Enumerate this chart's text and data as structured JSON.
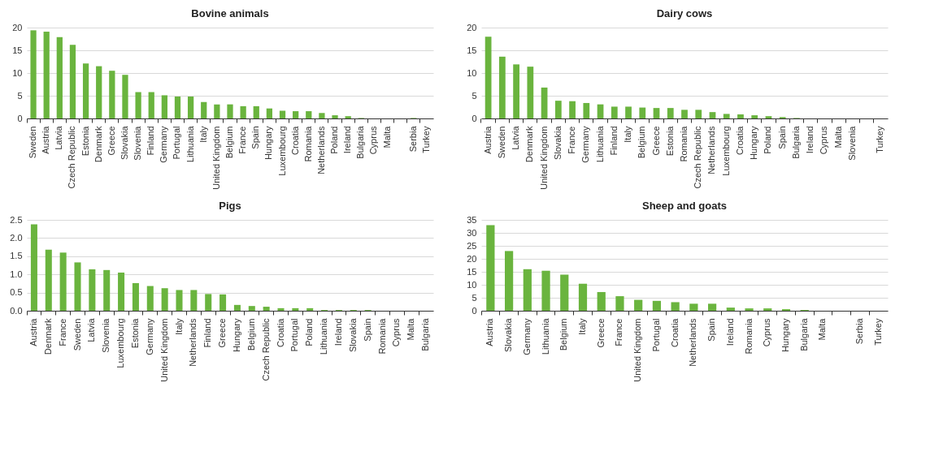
{
  "chart_data": [
    {
      "type": "bar",
      "title": "Bovine animals",
      "color": "#6ab43e",
      "grid": "y",
      "ylim": [
        0,
        20
      ],
      "yticks": [
        0,
        5,
        10,
        15,
        20
      ],
      "categories": [
        "Sweden",
        "Austria",
        "Latvia",
        "Czech Republic",
        "Estonia",
        "Denmark",
        "Greece",
        "Slovakia",
        "Slovenia",
        "Finland",
        "Germany",
        "Portugal",
        "Lithuania",
        "Italy",
        "United Kingdom",
        "Belgium",
        "France",
        "Spain",
        "Hungary",
        "Luxembourg",
        "Croatia",
        "Romania",
        "Netherlands",
        "Poland",
        "Ireland",
        "Bulgaria",
        "Cyprus",
        "Malta",
        null,
        "Serbia",
        "Turkey"
      ],
      "values": [
        19.4,
        19.1,
        17.9,
        16.2,
        12.1,
        11.5,
        10.5,
        9.6,
        5.8,
        5.8,
        5.1,
        4.8,
        4.8,
        3.6,
        3.1,
        3.1,
        2.7,
        2.7,
        2.2,
        1.7,
        1.6,
        1.6,
        1.2,
        0.7,
        0.5,
        0.1,
        0,
        0,
        null,
        0.1,
        0
      ]
    },
    {
      "type": "bar",
      "title": "Dairy cows",
      "color": "#6ab43e",
      "grid": "y",
      "ylim": [
        0,
        20
      ],
      "yticks": [
        0,
        5,
        10,
        15,
        20
      ],
      "categories": [
        "Austria",
        "Sweden",
        "Latvia",
        "Denmark",
        "United Kingdom",
        "Slovakia",
        "France",
        "Germany",
        "Lithuania",
        "Finland",
        "Italy",
        "Belgium",
        "Greece",
        "Estonia",
        "Romania",
        "Czech Republic",
        "Netherlands",
        "Luxembourg",
        "Croatia",
        "Hungary",
        "Poland",
        "Spain",
        "Bulgaria",
        "Ireland",
        "Cyprus",
        "Malta",
        "Slovenia",
        null,
        "Turkey"
      ],
      "values": [
        18.0,
        13.6,
        11.9,
        11.4,
        6.8,
        3.9,
        3.8,
        3.4,
        3.1,
        2.6,
        2.6,
        2.4,
        2.3,
        2.3,
        1.9,
        1.9,
        1.4,
        1.0,
        0.9,
        0.7,
        0.5,
        0.3,
        0.1,
        0,
        0,
        0,
        0,
        null,
        0
      ]
    },
    {
      "type": "bar",
      "title": "Pigs",
      "color": "#6ab43e",
      "grid": "y",
      "ylim": [
        0,
        2.5
      ],
      "yticks": [
        {
          "value": 0,
          "label": "0.0"
        },
        0.5,
        {
          "value": 1,
          "label": "1.0"
        },
        1.5,
        {
          "value": 2,
          "label": "2.0"
        },
        2.5
      ],
      "categories": [
        "Austria",
        "Denmark",
        "France",
        "Sweden",
        "Latvia",
        "Slovenia",
        "Luxembourg",
        "Estonia",
        "Germany",
        "United Kingdom",
        "Italy",
        "Netherlands",
        "Finland",
        "Greece",
        "Hungary",
        "Belgium",
        "Czech Republic",
        "Croatia",
        "Portugal",
        "Poland",
        "Lithuania",
        "Ireland",
        "Slovakia",
        "Spain",
        "Romania",
        "Cyprus",
        "Malta",
        "Bulgaria"
      ],
      "values": [
        2.38,
        1.68,
        1.6,
        1.33,
        1.14,
        1.12,
        1.05,
        0.76,
        0.68,
        0.62,
        0.57,
        0.57,
        0.46,
        0.45,
        0.16,
        0.13,
        0.11,
        0.07,
        0.07,
        0.07,
        0.02,
        0.02,
        0.02,
        0.02,
        0,
        0,
        0,
        0
      ]
    },
    {
      "type": "bar",
      "title": "Sheep and goats",
      "color": "#6ab43e",
      "grid": "y",
      "ylim": [
        0,
        35
      ],
      "yticks": [
        0,
        5,
        10,
        15,
        20,
        25,
        30,
        35
      ],
      "categories": [
        "Austria",
        "Slovakia",
        "Germany",
        "Lithuania",
        "Belgium",
        "Italy",
        "Greece",
        "France",
        "United Kingdom",
        "Portugal",
        "Croatia",
        "Netherlands",
        "Spain",
        "Ireland",
        "Romania",
        "Cyprus",
        "Hungary",
        "Bulgaria",
        "Malta",
        null,
        "Serbia",
        "Turkey"
      ],
      "values": [
        33,
        23,
        16,
        15.4,
        13.9,
        10.4,
        7.2,
        5.6,
        4.2,
        3.8,
        3.3,
        2.7,
        2.7,
        1.2,
        0.9,
        0.9,
        0.6,
        0.3,
        0,
        null,
        0,
        0
      ]
    }
  ]
}
